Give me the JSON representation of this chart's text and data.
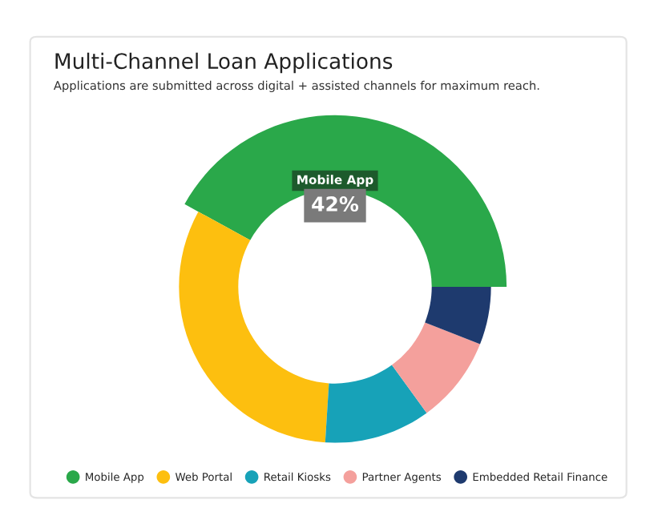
{
  "chart_data": {
    "type": "donut",
    "title": "Multi-Channel Loan Applications",
    "subtitle": "Applications are submitted across digital + assisted channels for maximum reach.",
    "categories": [
      "Mobile App",
      "Web Portal",
      "Retail Kiosks",
      "Partner Agents",
      "Embedded Retail Finance"
    ],
    "values": [
      42,
      32,
      11,
      9,
      6
    ],
    "colors": [
      "#2aa84a",
      "#fdbf0f",
      "#17a2b8",
      "#f4a09c",
      "#1e3a6e"
    ],
    "value_labels": [
      "42%",
      null,
      null,
      null,
      null
    ],
    "legend": "bottom"
  }
}
